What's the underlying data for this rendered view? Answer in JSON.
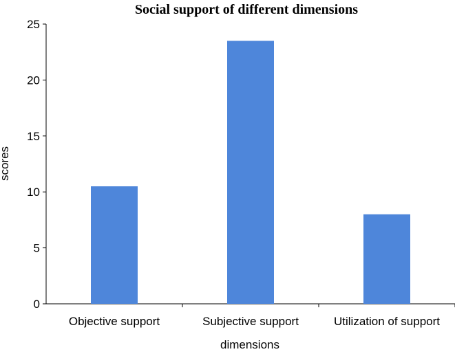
{
  "chart_data": {
    "type": "bar",
    "title": "Social support of different dimensions",
    "xlabel": "dimensions",
    "ylabel": "scores",
    "categories": [
      "Objective support",
      "Subjective support",
      "Utilization of support"
    ],
    "values": [
      10.5,
      23.5,
      8.0
    ],
    "ylim": [
      0,
      25
    ],
    "yticks": [
      "0",
      "5",
      "10",
      "15",
      "20",
      "25"
    ],
    "grid": false,
    "bar_color": "#4e86da"
  }
}
